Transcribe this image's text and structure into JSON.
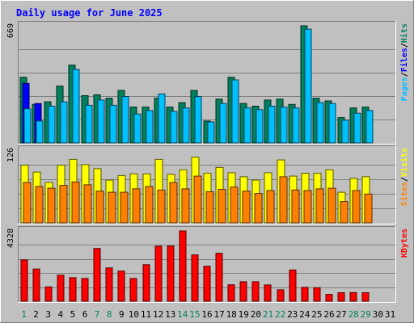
{
  "chart_data": {
    "type": "bar",
    "title": "Daily usage for June 2025",
    "x": [
      1,
      2,
      3,
      4,
      5,
      6,
      7,
      8,
      9,
      10,
      11,
      12,
      13,
      14,
      15,
      16,
      17,
      18,
      19,
      20,
      21,
      22,
      23,
      24,
      25,
      26,
      27,
      28,
      29,
      30,
      31
    ],
    "weekend_days": [
      1,
      7,
      8,
      14,
      15,
      21,
      22,
      28,
      29
    ],
    "panels": [
      {
        "name": "hits-files-pages",
        "ymax_label": "669",
        "ylim": [
          0,
          669
        ],
        "labels": [
          "Pages",
          "Files",
          "Hits"
        ],
        "series": [
          {
            "name": "Hits",
            "color": "#00805c",
            "values": [
              375,
              220,
              235,
              325,
              445,
              270,
              275,
              255,
              300,
              205,
              205,
              255,
              205,
              230,
              300,
              125,
              250,
              375,
              225,
              210,
              245,
              250,
              220,
              669,
              255,
              240,
              145,
              200,
              205,
              0,
              0
            ]
          },
          {
            "name": "Files",
            "color": "#0000ff",
            "values": [
              340,
              225,
              0,
              0,
              0,
              0,
              0,
              0,
              0,
              0,
              0,
              0,
              0,
              0,
              0,
              0,
              0,
              0,
              0,
              0,
              0,
              0,
              0,
              0,
              0,
              0,
              0,
              0,
              0,
              0,
              0
            ]
          },
          {
            "name": "Pages",
            "color": "#00c0ff",
            "values": [
              195,
              125,
              210,
              235,
              420,
              215,
              245,
              215,
              265,
              165,
              185,
              280,
              180,
              200,
              265,
              120,
              225,
              360,
              200,
              190,
              210,
              205,
              200,
              650,
              230,
              225,
              130,
              170,
              185,
              0,
              0
            ]
          }
        ]
      },
      {
        "name": "visits-sites",
        "ymax_label": "126",
        "ylim": [
          0,
          126
        ],
        "labels": [
          "Sites",
          "Visits"
        ],
        "series": [
          {
            "name": "Visits",
            "color": "#ffff00",
            "values": [
              100,
              88,
              70,
              100,
              110,
              101,
              94,
              74,
              82,
              85,
              85,
              110,
              84,
              92,
              114,
              86,
              96,
              87,
              80,
              74,
              87,
              109,
              81,
              86,
              86,
              92,
              53,
              77,
              80,
              0,
              0
            ]
          },
          {
            "name": "Sites",
            "color": "#ff8000",
            "values": [
              70,
              63,
              60,
              65,
              71,
              66,
              55,
              53,
              53,
              59,
              63,
              57,
              70,
              59,
              81,
              54,
              58,
              62,
              55,
              51,
              56,
              80,
              57,
              56,
              59,
              60,
              37,
              56,
              50,
              0,
              0
            ]
          }
        ]
      },
      {
        "name": "kbytes",
        "ymax_label": "4328",
        "ylim": [
          0,
          4328
        ],
        "labels": [
          "KBytes"
        ],
        "series": [
          {
            "name": "KBytes",
            "color": "#ff0000",
            "values": [
              2540,
              1980,
              880,
              1600,
              1450,
              1400,
              3250,
              2050,
              1850,
              1400,
              2250,
              3390,
              3400,
              4328,
              2850,
              2150,
              2950,
              1010,
              1200,
              1200,
              1000,
              700,
              1920,
              850,
              830,
              420,
              520,
              530,
              520,
              0,
              0
            ]
          }
        ]
      }
    ]
  }
}
